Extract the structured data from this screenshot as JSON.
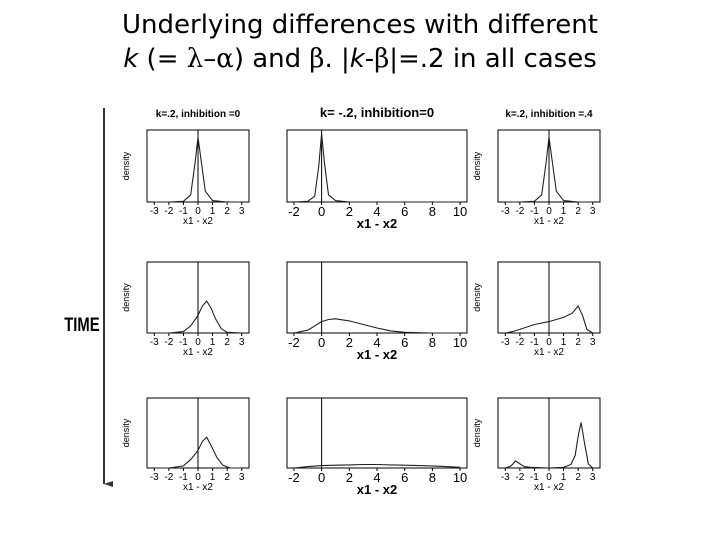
{
  "title": {
    "line1": "Underlying differences with different",
    "l2_k": "k",
    "l2_a": " (= ",
    "l2_lambda": "λ",
    "l2_dash": "–",
    "l2_alpha": "α",
    "l2_b": ") and ",
    "l2_beta": "β",
    "l2_c": ". |",
    "l2_k2": "k",
    "l2_d": "-",
    "l2_beta2": "β",
    "l2_e": "|=.2 in all cases"
  },
  "time_label": "TIME",
  "chart_data": {
    "type": "line",
    "layout": "3x3 grid of density histograms over time",
    "xlabel": "x1 - x2",
    "ylabel": "density",
    "columns": [
      {
        "title": "k=.2, inhibition =0",
        "xticks": [
          -3,
          -2,
          -1,
          0,
          1,
          2,
          3
        ],
        "xlim": [
          -3.5,
          3.5
        ],
        "vline": 0
      },
      {
        "title": "k= -.2, inhibition=0",
        "xticks": [
          -2,
          0,
          2,
          4,
          6,
          8,
          10
        ],
        "xlim": [
          -2.5,
          10.5
        ],
        "vline": 0
      },
      {
        "title": "k=.2, inhibition =.4",
        "xticks": [
          -3,
          -2,
          -1,
          0,
          1,
          2,
          3
        ],
        "xlim": [
          -3.5,
          3.5
        ],
        "vline": 0
      }
    ],
    "ylim": [
      0,
      1
    ],
    "panels": [
      {
        "row": 0,
        "col": 0,
        "x": [
          -3,
          -2,
          -1,
          -0.5,
          -0.2,
          0,
          0.2,
          0.5,
          1,
          2,
          3
        ],
        "y": [
          0,
          0,
          0.01,
          0.1,
          0.55,
          0.9,
          0.6,
          0.15,
          0.02,
          0,
          0
        ]
      },
      {
        "row": 0,
        "col": 1,
        "x": [
          -2,
          -1,
          -0.5,
          -0.2,
          0,
          0.2,
          0.5,
          1,
          2,
          4,
          6,
          8,
          10
        ],
        "y": [
          0,
          0.01,
          0.08,
          0.5,
          0.95,
          0.55,
          0.1,
          0.02,
          0,
          0,
          0,
          0,
          0
        ]
      },
      {
        "row": 0,
        "col": 2,
        "x": [
          -3,
          -2,
          -1,
          -0.5,
          -0.2,
          0,
          0.2,
          0.5,
          1,
          2,
          3
        ],
        "y": [
          0,
          0,
          0.01,
          0.1,
          0.55,
          0.9,
          0.6,
          0.15,
          0.02,
          0,
          0
        ]
      },
      {
        "row": 1,
        "col": 0,
        "x": [
          -3,
          -2,
          -1,
          -0.5,
          0,
          0.3,
          0.6,
          0.9,
          1.2,
          1.6,
          2,
          3
        ],
        "y": [
          0,
          0,
          0.02,
          0.1,
          0.25,
          0.38,
          0.45,
          0.35,
          0.2,
          0.06,
          0.01,
          0
        ]
      },
      {
        "row": 1,
        "col": 1,
        "x": [
          -2,
          -1,
          0,
          0.5,
          1,
          2,
          3,
          4,
          5,
          6,
          8,
          10
        ],
        "y": [
          0,
          0.04,
          0.16,
          0.19,
          0.2,
          0.17,
          0.12,
          0.07,
          0.03,
          0.01,
          0,
          0
        ]
      },
      {
        "row": 1,
        "col": 2,
        "x": [
          -3,
          -2.5,
          -2,
          -1,
          0,
          1,
          1.6,
          2,
          2.3,
          2.6,
          3
        ],
        "y": [
          0,
          0.02,
          0.05,
          0.12,
          0.16,
          0.22,
          0.28,
          0.38,
          0.25,
          0.05,
          0
        ]
      },
      {
        "row": 2,
        "col": 0,
        "x": [
          -3,
          -2,
          -1,
          -0.5,
          0,
          0.3,
          0.6,
          0.9,
          1.3,
          1.7,
          2.2,
          3
        ],
        "y": [
          0,
          0,
          0.03,
          0.12,
          0.25,
          0.38,
          0.44,
          0.32,
          0.15,
          0.04,
          0,
          0
        ]
      },
      {
        "row": 2,
        "col": 1,
        "x": [
          -2,
          -1,
          0,
          1,
          2,
          3,
          4,
          5,
          6,
          7,
          8,
          9,
          10
        ],
        "y": [
          0,
          0.02,
          0.035,
          0.04,
          0.045,
          0.05,
          0.05,
          0.045,
          0.04,
          0.035,
          0.03,
          0.02,
          0.01
        ]
      },
      {
        "row": 2,
        "col": 2,
        "x": [
          -3,
          -2.6,
          -2.3,
          -2,
          -1.7,
          -1.3,
          0,
          1,
          1.5,
          1.8,
          2,
          2.2,
          2.4,
          2.7,
          3
        ],
        "y": [
          0,
          0.03,
          0.1,
          0.06,
          0.02,
          0.01,
          0,
          0.01,
          0.05,
          0.18,
          0.45,
          0.65,
          0.4,
          0.06,
          0
        ]
      }
    ]
  }
}
